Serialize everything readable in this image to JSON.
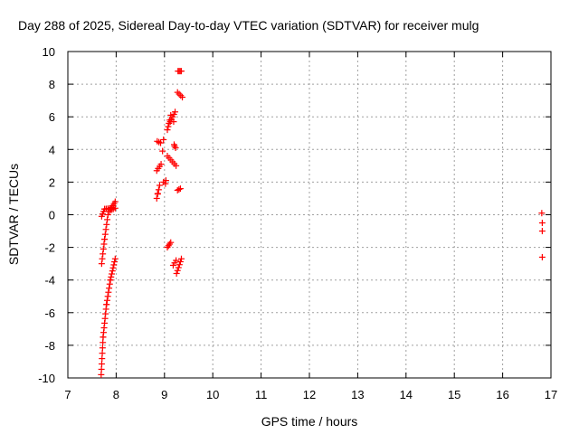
{
  "chart_data": {
    "type": "scatter",
    "title": "Day 288 of 2025, Sidereal Day-to-day VTEC variation (SDTVAR) for receiver mulg",
    "xlabel": "GPS time / hours",
    "ylabel": "SDTVAR / TECUs",
    "xlim": [
      7,
      17
    ],
    "ylim": [
      -10,
      10
    ],
    "xticks": [
      "7",
      "8",
      "9",
      "10",
      "11",
      "12",
      "13",
      "14",
      "15",
      "16",
      "17"
    ],
    "yticks": [
      "-10",
      "-8",
      "-6",
      "-4",
      "-2",
      "0",
      "2",
      "4",
      "6",
      "8",
      "10"
    ],
    "grid": true,
    "marker": "plus",
    "color": "#ff0000",
    "segments": [
      {
        "x0": 7.69,
        "y0": -9.8,
        "x1": 7.73,
        "y1": -7.5,
        "n": 8
      },
      {
        "x0": 7.73,
        "y0": -7.5,
        "x1": 7.8,
        "y1": -5.5,
        "n": 8
      },
      {
        "x0": 7.8,
        "y0": -5.5,
        "x1": 7.88,
        "y1": -4.0,
        "n": 7
      },
      {
        "x0": 7.88,
        "y0": -4.0,
        "x1": 7.98,
        "y1": -2.7,
        "n": 8
      },
      {
        "x0": 7.7,
        "y0": -3.0,
        "x1": 7.76,
        "y1": -1.5,
        "n": 6
      },
      {
        "x0": 7.76,
        "y0": -1.5,
        "x1": 7.83,
        "y1": 0.0,
        "n": 6
      },
      {
        "x0": 7.7,
        "y0": -0.1,
        "x1": 7.76,
        "y1": 0.35,
        "n": 4
      },
      {
        "x0": 7.76,
        "y0": 0.35,
        "x1": 7.9,
        "y1": 0.4,
        "n": 5
      },
      {
        "x0": 7.86,
        "y0": 0.2,
        "x1": 7.98,
        "y1": 0.8,
        "n": 6
      },
      {
        "x0": 7.9,
        "y0": 0.3,
        "x1": 7.98,
        "y1": 0.4,
        "n": 3
      },
      {
        "x0": 8.84,
        "y0": 1.0,
        "x1": 8.9,
        "y1": 1.8,
        "n": 4
      },
      {
        "x0": 8.84,
        "y0": 2.7,
        "x1": 8.93,
        "y1": 3.1,
        "n": 4
      },
      {
        "x0": 8.85,
        "y0": 4.5,
        "x1": 8.92,
        "y1": 4.4,
        "n": 3
      },
      {
        "x0": 8.98,
        "y0": 2.0,
        "x1": 9.03,
        "y1": 2.1,
        "n": 2
      },
      {
        "x0": 9.06,
        "y0": -2.0,
        "x1": 9.13,
        "y1": -1.7,
        "n": 4
      },
      {
        "x0": 9.06,
        "y0": 3.6,
        "x1": 9.24,
        "y1": 3.0,
        "n": 6
      },
      {
        "x0": 9.06,
        "y0": 5.2,
        "x1": 9.11,
        "y1": 5.8,
        "n": 4
      },
      {
        "x0": 9.12,
        "y0": 5.7,
        "x1": 9.22,
        "y1": 6.3,
        "n": 5
      },
      {
        "x0": 9.18,
        "y0": -3.1,
        "x1": 9.24,
        "y1": -2.8,
        "n": 3
      },
      {
        "x0": 9.2,
        "y0": 4.3,
        "x1": 9.23,
        "y1": 4.1,
        "n": 2
      },
      {
        "x0": 9.25,
        "y0": -3.6,
        "x1": 9.35,
        "y1": -2.7,
        "n": 6
      },
      {
        "x0": 9.27,
        "y0": 1.5,
        "x1": 9.33,
        "y1": 1.6,
        "n": 3
      },
      {
        "x0": 9.27,
        "y0": 7.5,
        "x1": 9.37,
        "y1": 7.2,
        "n": 4
      },
      {
        "x0": 9.28,
        "y0": 8.8,
        "x1": 9.35,
        "y1": 8.8,
        "n": 4
      }
    ],
    "points": [
      [
        8.86,
        1.3
      ],
      [
        8.96,
        3.9
      ],
      [
        8.98,
        4.6
      ],
      [
        9.02,
        1.9
      ],
      [
        9.13,
        6.1
      ],
      [
        9.19,
        5.7
      ],
      [
        9.21,
        4.2
      ],
      [
        16.81,
        0.1
      ],
      [
        16.82,
        -0.5
      ],
      [
        16.82,
        -1.0
      ],
      [
        16.82,
        -2.6
      ]
    ]
  }
}
